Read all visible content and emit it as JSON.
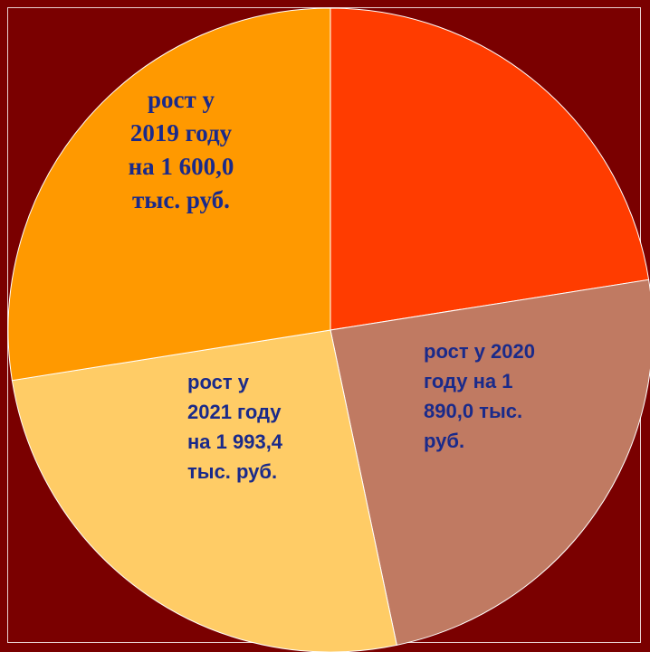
{
  "chart_data": {
    "type": "pie",
    "values": [
      22.5,
      24.2,
      25.8,
      27.5
    ],
    "colors": [
      "#ff3c00",
      "#c07a62",
      "#ffcc66",
      "#ff9900"
    ],
    "labels": [
      null,
      [
        "рост у 2020",
        "году на 1",
        "890,0 тыс.",
        "руб."
      ],
      [
        "рост у",
        "2021 году",
        "на 1 993,4",
        "тыс. руб."
      ],
      [
        "рост  у",
        "2019 году",
        "на 1 600,0",
        "тыс. руб."
      ]
    ],
    "start_angle": 0,
    "direction": "clockwise"
  }
}
